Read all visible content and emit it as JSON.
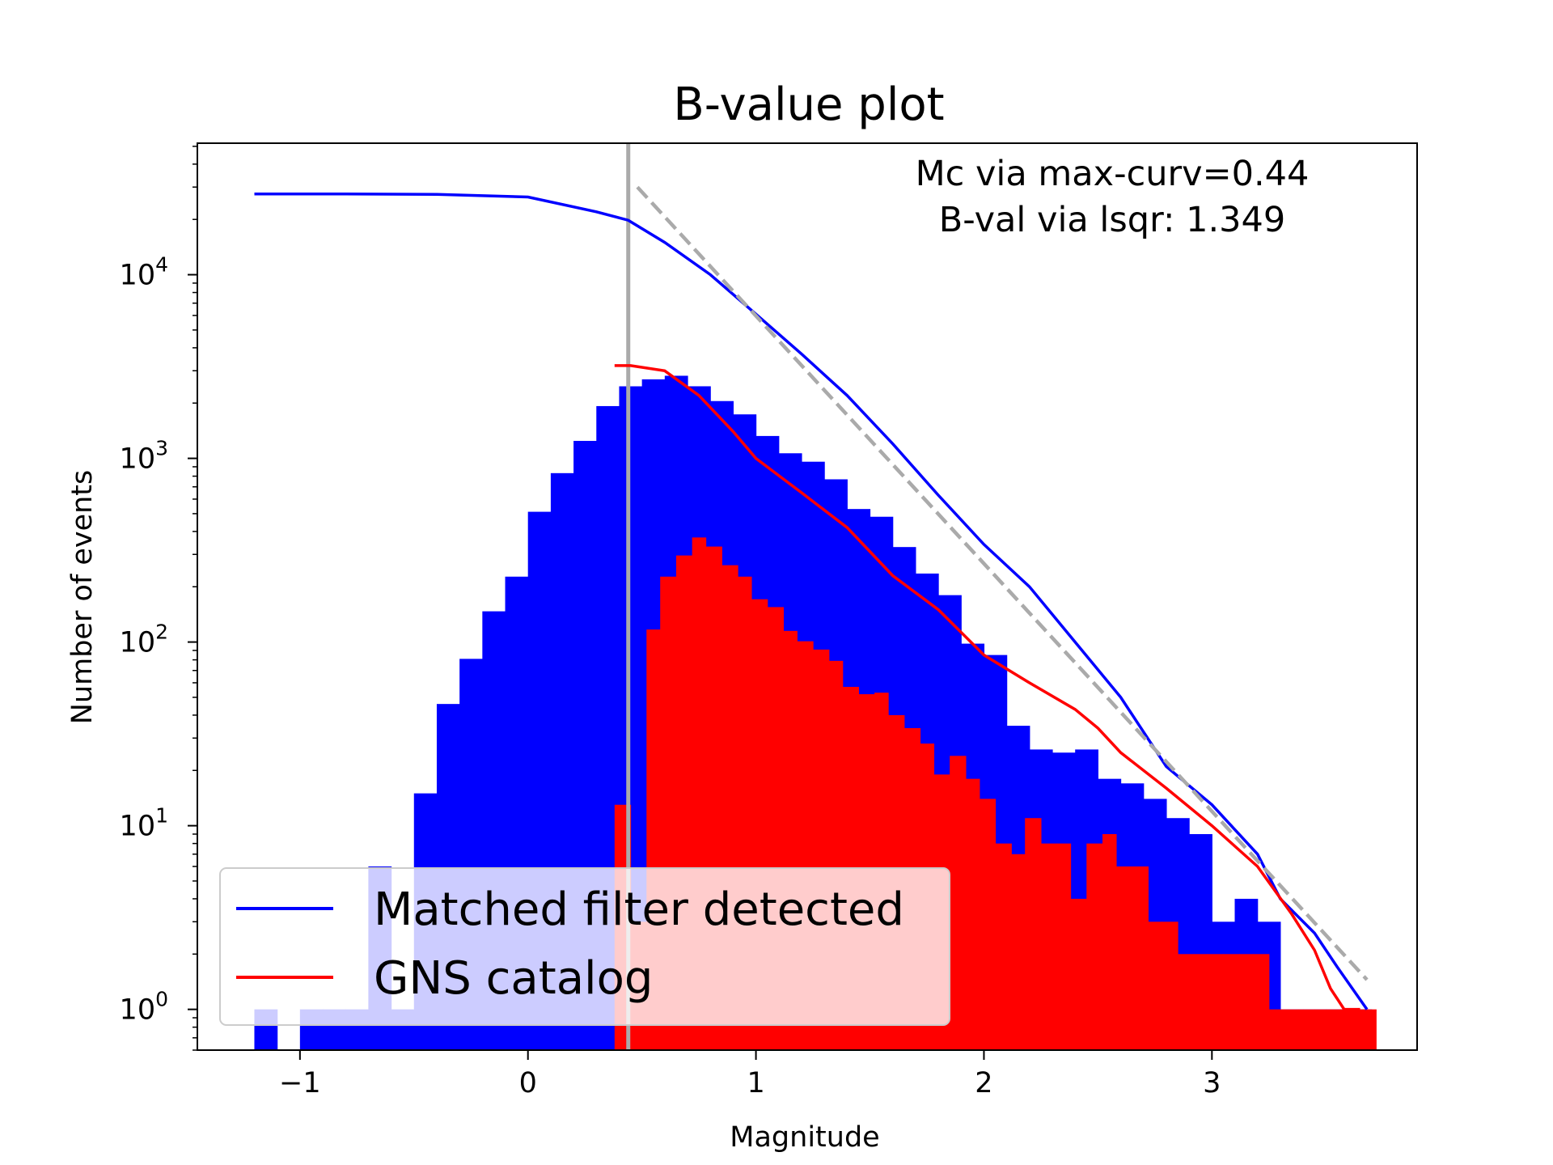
{
  "chart_data": {
    "type": "bar",
    "title": "B-value plot",
    "xlabel": "Magnitude",
    "ylabel": "Number of events",
    "xlim": [
      -1.45,
      3.9
    ],
    "ylim": [
      0.6,
      52000
    ],
    "yscale": "log",
    "xticks": [
      -1,
      0,
      1,
      2,
      3
    ],
    "xtick_labels": [
      "−1",
      "0",
      "1",
      "2",
      "3"
    ],
    "yticks": [
      {
        "value": 1,
        "base": "10",
        "exp": "0"
      },
      {
        "value": 10,
        "base": "10",
        "exp": "1"
      },
      {
        "value": 100,
        "base": "10",
        "exp": "2"
      },
      {
        "value": 1000,
        "base": "10",
        "exp": "3"
      },
      {
        "value": 10000,
        "base": "10",
        "exp": "4"
      }
    ],
    "annotations": [
      "Mc via max-curv=0.44",
      "B-val via lsqr: 1.349"
    ],
    "legend_placement": "lower-left",
    "grid": false,
    "mc_line": {
      "x": 0.44,
      "color": "#aaaaaa"
    },
    "bfit_line": {
      "x": [
        0.48,
        3.68
      ],
      "y": [
        30000,
        1.45
      ],
      "color": "#aaaaaa",
      "style": "dashed"
    },
    "series": [
      {
        "name": "Matched filter detected",
        "color": "#0000ff",
        "bins": [
          [
            -1.2,
            -1.1,
            1
          ],
          [
            -1.0,
            -0.9,
            1
          ],
          [
            -0.9,
            -0.8,
            1
          ],
          [
            -0.8,
            -0.7,
            1
          ],
          [
            -0.7,
            -0.6,
            6
          ],
          [
            -0.6,
            -0.5,
            1
          ],
          [
            -0.5,
            -0.4,
            15
          ],
          [
            -0.4,
            -0.3,
            46
          ],
          [
            -0.3,
            -0.2,
            81
          ],
          [
            -0.2,
            -0.1,
            147
          ],
          [
            -0.1,
            0.0,
            227
          ],
          [
            0.0,
            0.1,
            512
          ],
          [
            0.1,
            0.2,
            831
          ],
          [
            0.2,
            0.3,
            1245
          ],
          [
            0.3,
            0.4,
            1926
          ],
          [
            0.4,
            0.5,
            2468
          ],
          [
            0.5,
            0.6,
            2694
          ],
          [
            0.6,
            0.7,
            2817
          ],
          [
            0.7,
            0.8,
            2469
          ],
          [
            0.8,
            0.9,
            2051
          ],
          [
            0.9,
            1.0,
            1736
          ],
          [
            1.0,
            1.1,
            1324
          ],
          [
            1.1,
            1.2,
            1066
          ],
          [
            1.2,
            1.3,
            959
          ],
          [
            1.3,
            1.4,
            769
          ],
          [
            1.4,
            1.5,
            530
          ],
          [
            1.5,
            1.6,
            481
          ],
          [
            1.6,
            1.7,
            329
          ],
          [
            1.7,
            1.8,
            236
          ],
          [
            1.8,
            1.9,
            180
          ],
          [
            1.9,
            2.0,
            98
          ],
          [
            2.0,
            2.1,
            85
          ],
          [
            2.1,
            2.2,
            35
          ],
          [
            2.2,
            2.3,
            26
          ],
          [
            2.3,
            2.4,
            25
          ],
          [
            2.4,
            2.5,
            26
          ],
          [
            2.5,
            2.6,
            18
          ],
          [
            2.6,
            2.7,
            17
          ],
          [
            2.7,
            2.8,
            14
          ],
          [
            2.8,
            2.9,
            11
          ],
          [
            2.9,
            3.0,
            9
          ],
          [
            3.0,
            3.1,
            3
          ],
          [
            3.1,
            3.2,
            4
          ],
          [
            3.2,
            3.3,
            3
          ],
          [
            3.3,
            3.4,
            1
          ],
          [
            3.4,
            3.5,
            1
          ],
          [
            3.5,
            3.6,
            1
          ],
          [
            3.6,
            3.7,
            1
          ]
        ],
        "cumulative": {
          "x": [
            -1.2,
            -0.8,
            -0.4,
            0.0,
            0.3,
            0.44,
            0.6,
            0.8,
            1.0,
            1.2,
            1.4,
            1.6,
            1.8,
            2.0,
            2.2,
            2.4,
            2.6,
            2.8,
            3.0,
            3.2,
            3.3,
            3.45,
            3.55,
            3.68
          ],
          "y": [
            27500,
            27500,
            27400,
            26500,
            22000,
            19800,
            15000,
            10000,
            6100,
            3700,
            2200,
            1200,
            630,
            340,
            200,
            100,
            50,
            21,
            13,
            7,
            4,
            2.6,
            1.7,
            1
          ]
        }
      },
      {
        "name": "GNS catalog",
        "color": "#ff0000",
        "bins": [
          [
            0.38,
            0.45,
            13
          ],
          [
            0.45,
            0.52,
            3
          ],
          [
            0.52,
            0.58,
            117
          ],
          [
            0.58,
            0.65,
            227
          ],
          [
            0.65,
            0.72,
            296
          ],
          [
            0.72,
            0.78,
            371
          ],
          [
            0.78,
            0.85,
            331
          ],
          [
            0.85,
            0.92,
            262
          ],
          [
            0.92,
            0.98,
            227
          ],
          [
            0.98,
            1.05,
            171
          ],
          [
            1.05,
            1.12,
            155
          ],
          [
            1.12,
            1.18,
            115
          ],
          [
            1.18,
            1.25,
            101
          ],
          [
            1.25,
            1.32,
            91
          ],
          [
            1.32,
            1.38,
            79
          ],
          [
            1.38,
            1.45,
            57
          ],
          [
            1.45,
            1.52,
            52
          ],
          [
            1.52,
            1.58,
            53
          ],
          [
            1.58,
            1.65,
            40
          ],
          [
            1.65,
            1.72,
            34
          ],
          [
            1.72,
            1.78,
            28
          ],
          [
            1.78,
            1.85,
            19
          ],
          [
            1.85,
            1.92,
            24
          ],
          [
            1.92,
            1.98,
            18
          ],
          [
            1.98,
            2.05,
            14
          ],
          [
            2.05,
            2.12,
            8
          ],
          [
            2.12,
            2.18,
            7
          ],
          [
            2.18,
            2.25,
            11
          ],
          [
            2.25,
            2.32,
            8
          ],
          [
            2.32,
            2.38,
            8
          ],
          [
            2.38,
            2.45,
            4
          ],
          [
            2.45,
            2.52,
            8
          ],
          [
            2.52,
            2.58,
            9
          ],
          [
            2.58,
            2.65,
            6
          ],
          [
            2.65,
            2.72,
            6
          ],
          [
            2.72,
            2.78,
            3
          ],
          [
            2.78,
            2.85,
            3
          ],
          [
            2.85,
            2.92,
            2
          ],
          [
            2.92,
            2.98,
            2
          ],
          [
            2.98,
            3.05,
            2
          ],
          [
            3.05,
            3.12,
            2
          ],
          [
            3.12,
            3.18,
            2
          ],
          [
            3.18,
            3.25,
            2
          ],
          [
            3.25,
            3.32,
            1
          ],
          [
            3.32,
            3.38,
            1
          ],
          [
            3.38,
            3.45,
            1
          ],
          [
            3.45,
            3.52,
            1
          ],
          [
            3.52,
            3.58,
            1
          ],
          [
            3.58,
            3.65,
            1
          ],
          [
            3.65,
            3.72,
            1
          ]
        ],
        "cumulative": {
          "x": [
            0.38,
            0.45,
            0.6,
            0.75,
            0.9,
            1.0,
            1.2,
            1.4,
            1.6,
            1.8,
            2.0,
            2.2,
            2.4,
            2.5,
            2.6,
            2.8,
            3.0,
            3.2,
            3.35,
            3.45,
            3.52,
            3.58,
            3.65
          ],
          "y": [
            3200,
            3200,
            3000,
            2200,
            1400,
            1000,
            650,
            420,
            230,
            150,
            85,
            60,
            43,
            34,
            25,
            16,
            10,
            6,
            3.3,
            2.1,
            1.3,
            1,
            1
          ]
        }
      }
    ]
  }
}
